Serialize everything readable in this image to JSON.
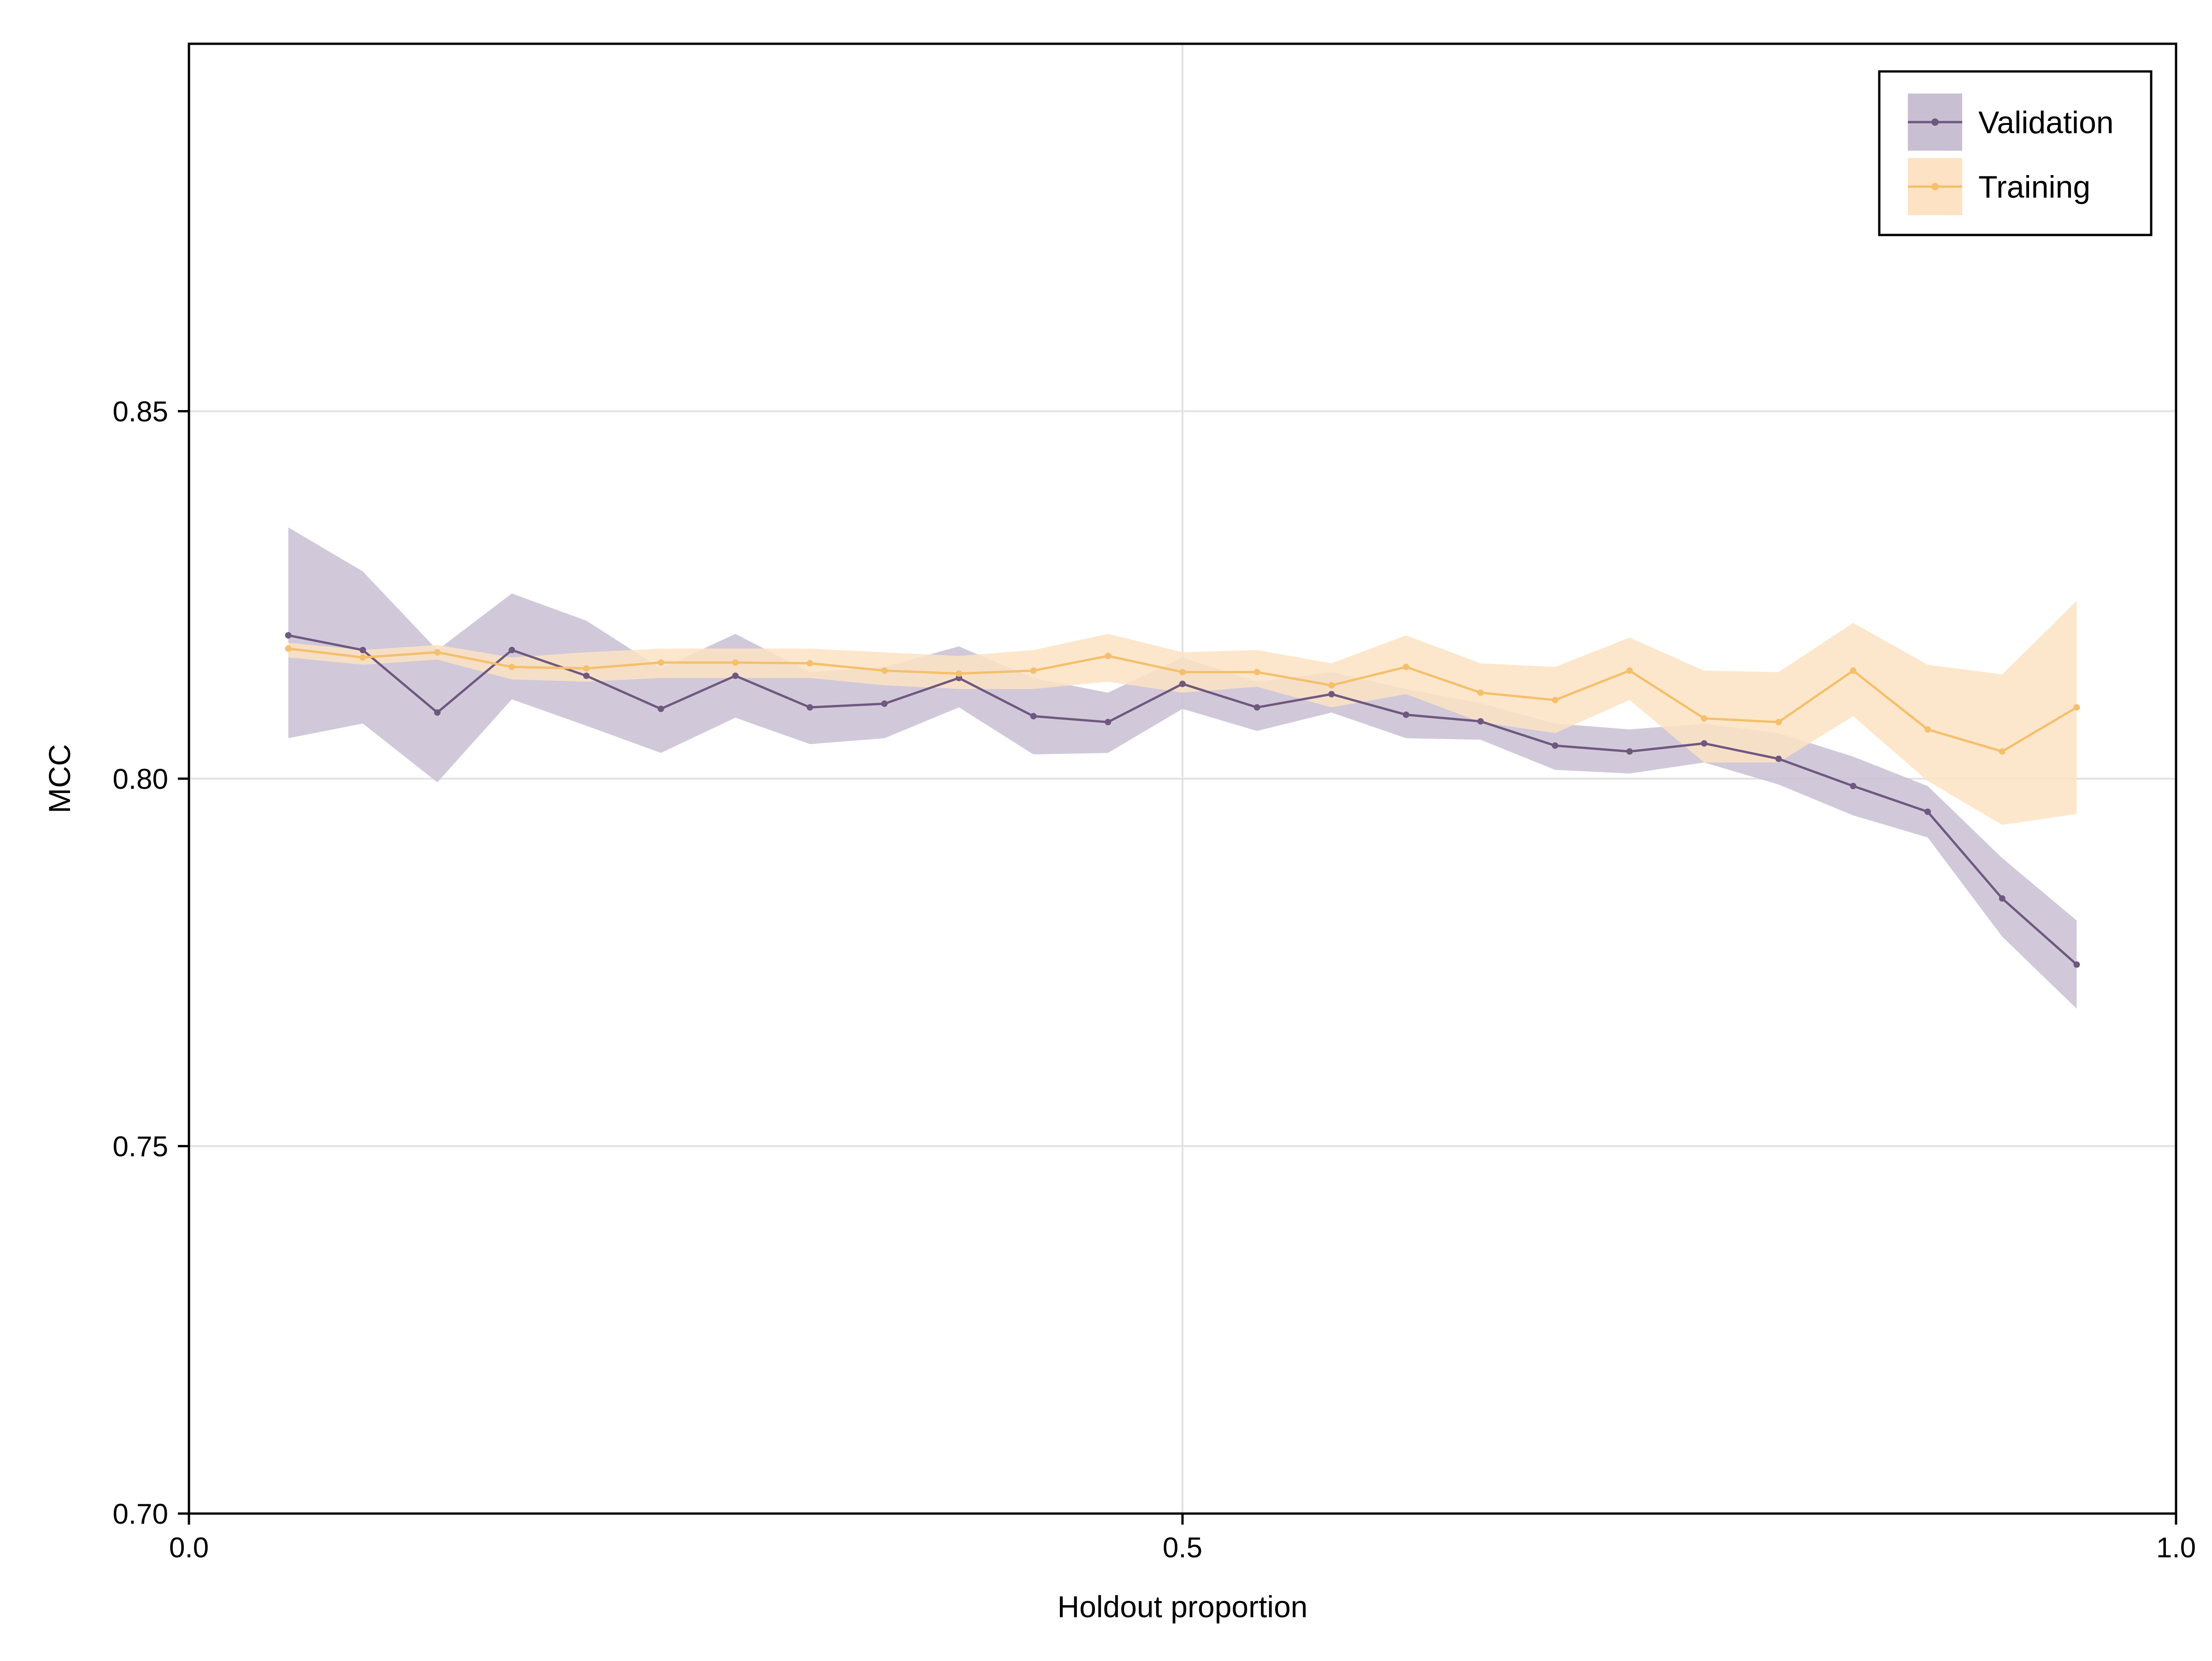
{
  "chart_data": {
    "type": "line",
    "xlabel": "Holdout proportion",
    "ylabel": "MCC",
    "xlim": [
      0.0,
      1.0
    ],
    "ylim": [
      0.7,
      0.9
    ],
    "x_ticks": [
      0.0,
      0.5,
      1.0
    ],
    "x_tick_labels": [
      "0.0",
      "0.5",
      "1.0"
    ],
    "y_ticks": [
      0.7,
      0.75,
      0.8,
      0.85
    ],
    "y_tick_labels": [
      "0.70",
      "0.75",
      "0.80",
      "0.85"
    ],
    "grid": true,
    "legend_position": "top-right",
    "x": [
      0.05,
      0.0875,
      0.125,
      0.1625,
      0.2,
      0.2375,
      0.275,
      0.3125,
      0.35,
      0.3875,
      0.425,
      0.4625,
      0.5,
      0.5375,
      0.575,
      0.6125,
      0.65,
      0.6875,
      0.725,
      0.7625,
      0.8,
      0.8375,
      0.875,
      0.9125,
      0.95
    ],
    "series": [
      {
        "name": "Validation",
        "color": "#6f587f",
        "band_color": "#c9bfd2",
        "values": [
          0.8195,
          0.8175,
          0.809,
          0.8175,
          0.814,
          0.8095,
          0.814,
          0.8097,
          0.8102,
          0.8137,
          0.8085,
          0.8077,
          0.8129,
          0.8097,
          0.8115,
          0.8087,
          0.8078,
          0.8045,
          0.8037,
          0.8048,
          0.8027,
          0.799,
          0.7955,
          0.7837,
          0.7747
        ],
        "lower": [
          0.8055,
          0.8075,
          0.7995,
          0.8108,
          0.8072,
          0.8035,
          0.8083,
          0.8047,
          0.8055,
          0.8097,
          0.8033,
          0.8035,
          0.8095,
          0.8065,
          0.809,
          0.8055,
          0.8053,
          0.8012,
          0.8007,
          0.8022,
          0.7992,
          0.795,
          0.792,
          0.7785,
          0.7687
        ],
        "upper": [
          0.8342,
          0.8282,
          0.8175,
          0.8252,
          0.8215,
          0.815,
          0.8197,
          0.8145,
          0.8152,
          0.818,
          0.8137,
          0.8117,
          0.8165,
          0.8132,
          0.8145,
          0.8122,
          0.8103,
          0.8075,
          0.8067,
          0.8075,
          0.8062,
          0.803,
          0.799,
          0.7892,
          0.7807
        ]
      },
      {
        "name": "Training",
        "color": "#f5bf6b",
        "band_color": "#fde3c3",
        "values": [
          0.8177,
          0.8165,
          0.8172,
          0.8152,
          0.815,
          0.8158,
          0.8158,
          0.8157,
          0.8147,
          0.8143,
          0.8147,
          0.8167,
          0.8145,
          0.8145,
          0.8127,
          0.8152,
          0.8117,
          0.8107,
          0.8147,
          0.8082,
          0.8077,
          0.8147,
          0.8067,
          0.8037,
          0.8097
        ],
        "lower": [
          0.8165,
          0.8155,
          0.8162,
          0.8135,
          0.8132,
          0.8137,
          0.8137,
          0.8137,
          0.8127,
          0.8122,
          0.8122,
          0.8132,
          0.8117,
          0.8125,
          0.8097,
          0.8115,
          0.8077,
          0.8062,
          0.8107,
          0.8022,
          0.8022,
          0.8085,
          0.7997,
          0.7937,
          0.7952
        ],
        "upper": [
          0.8185,
          0.8175,
          0.8182,
          0.8165,
          0.8172,
          0.8177,
          0.8177,
          0.8177,
          0.8172,
          0.8167,
          0.8175,
          0.8197,
          0.8172,
          0.8175,
          0.8157,
          0.8195,
          0.8157,
          0.8152,
          0.8192,
          0.8147,
          0.8145,
          0.8212,
          0.8155,
          0.8142,
          0.8242
        ]
      }
    ]
  }
}
